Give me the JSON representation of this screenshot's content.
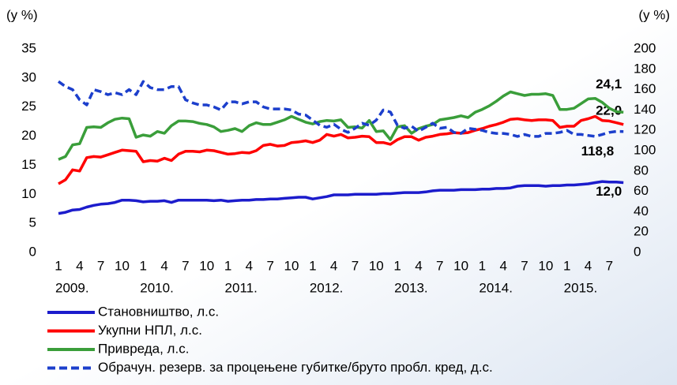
{
  "chart_data": {
    "type": "line",
    "y_label": "(у %)",
    "y2_label": "(у %)",
    "categories": [
      1,
      null,
      null,
      4,
      null,
      null,
      7,
      null,
      null,
      10,
      null,
      null,
      1,
      null,
      null,
      4,
      null,
      null,
      7,
      null,
      null,
      10,
      null,
      null,
      1,
      null,
      null,
      4,
      null,
      null,
      7,
      null,
      null,
      10,
      null,
      null,
      1,
      null,
      null,
      4,
      null,
      null,
      7,
      null,
      null,
      10,
      null,
      null,
      1,
      null,
      null,
      4,
      null,
      null,
      7,
      null,
      null,
      10,
      null,
      null,
      1,
      null,
      null,
      4,
      null,
      null,
      7,
      null,
      null,
      10,
      null,
      null,
      1,
      null,
      null,
      4,
      null,
      null,
      7,
      null,
      null
    ],
    "years": [
      "2009.",
      "2010.",
      "2011.",
      "2012.",
      "2013.",
      "2014.",
      "2015."
    ],
    "ylim": [
      0,
      35
    ],
    "yticks": [
      0,
      5,
      10,
      15,
      20,
      25,
      30,
      35
    ],
    "y2lim": [
      0,
      200
    ],
    "y2ticks": [
      0,
      20,
      40,
      60,
      80,
      100,
      120,
      140,
      160,
      180,
      200
    ],
    "series": [
      {
        "name": "Становништво, л.с.",
        "color": "#1c1ccc",
        "dashed": false,
        "values": [
          6.7,
          6.9,
          7.3,
          7.4,
          7.8,
          8.1,
          8.3,
          8.4,
          8.6,
          9.0,
          9.0,
          8.9,
          8.7,
          8.8,
          8.8,
          8.9,
          8.6,
          9.0,
          9.0,
          9.0,
          9.0,
          9.0,
          8.9,
          9.0,
          8.8,
          8.9,
          9.0,
          9.0,
          9.1,
          9.1,
          9.2,
          9.2,
          9.3,
          9.4,
          9.5,
          9.5,
          9.2,
          9.4,
          9.6,
          9.9,
          9.9,
          9.9,
          10.0,
          10.0,
          10.0,
          10.0,
          10.1,
          10.1,
          10.2,
          10.3,
          10.3,
          10.3,
          10.4,
          10.6,
          10.7,
          10.7,
          10.7,
          10.8,
          10.8,
          10.8,
          10.9,
          10.9,
          11.0,
          11.0,
          11.1,
          11.4,
          11.5,
          11.5,
          11.5,
          11.4,
          11.5,
          11.5,
          11.6,
          11.6,
          11.7,
          11.8,
          12.0,
          12.2,
          12.1,
          12.1,
          12.0
        ],
        "value_labels": [
          null,
          null,
          null,
          null,
          null,
          null,
          null,
          null,
          null,
          null,
          null,
          null,
          null,
          null,
          null,
          null,
          null,
          null,
          null,
          null,
          null,
          null,
          null,
          null,
          null,
          null,
          null,
          null,
          null,
          null,
          null,
          null,
          null,
          null,
          null,
          null,
          null,
          null,
          null,
          null,
          null,
          null,
          null,
          null,
          null,
          null,
          null,
          null,
          null,
          null,
          null,
          null,
          null,
          null,
          null,
          null,
          null,
          null,
          null,
          null,
          null,
          null,
          null,
          null,
          null,
          null,
          null,
          null,
          null,
          null,
          null,
          null,
          null,
          null,
          null,
          null,
          null,
          null,
          null,
          null,
          "12,0"
        ]
      },
      {
        "name": "Укупни НПЛ, л.с.",
        "color": "#ff0000",
        "dashed": false,
        "values": [
          11.8,
          12.5,
          14.2,
          14.0,
          16.3,
          16.5,
          16.4,
          16.8,
          17.2,
          17.6,
          17.5,
          17.4,
          15.6,
          15.8,
          15.7,
          16.2,
          15.8,
          16.9,
          17.4,
          17.4,
          17.3,
          17.6,
          17.5,
          17.2,
          16.9,
          17.0,
          17.2,
          17.1,
          17.5,
          18.4,
          18.6,
          18.3,
          18.4,
          18.9,
          19.0,
          19.2,
          18.9,
          19.3,
          20.3,
          20.0,
          20.3,
          19.7,
          19.8,
          20.0,
          19.9,
          18.9,
          18.9,
          18.6,
          19.4,
          19.9,
          19.9,
          19.3,
          19.8,
          20.0,
          20.3,
          20.4,
          20.6,
          20.5,
          20.6,
          21.0,
          21.3,
          21.7,
          22.0,
          22.4,
          22.9,
          23.0,
          22.8,
          22.7,
          22.8,
          22.8,
          22.7,
          21.5,
          21.7,
          21.7,
          22.7,
          23.0,
          23.4,
          22.7,
          22.6,
          22.3,
          22.0
        ],
        "value_labels": [
          null,
          null,
          null,
          null,
          null,
          null,
          null,
          null,
          null,
          null,
          null,
          null,
          null,
          null,
          null,
          null,
          null,
          null,
          null,
          null,
          null,
          null,
          null,
          null,
          null,
          null,
          null,
          null,
          null,
          null,
          null,
          null,
          null,
          null,
          null,
          null,
          null,
          null,
          null,
          null,
          null,
          null,
          null,
          null,
          null,
          null,
          null,
          null,
          null,
          null,
          null,
          null,
          null,
          null,
          null,
          null,
          null,
          null,
          null,
          null,
          null,
          null,
          null,
          null,
          null,
          null,
          null,
          null,
          null,
          null,
          null,
          null,
          null,
          null,
          null,
          null,
          null,
          null,
          null,
          null,
          "22,0"
        ]
      },
      {
        "name": "Привреда, л.с.",
        "color": "#3a9e3a",
        "dashed": false,
        "values": [
          16.0,
          16.5,
          18.5,
          18.7,
          21.5,
          21.6,
          21.5,
          22.3,
          22.9,
          23.1,
          23.0,
          19.8,
          20.2,
          20.0,
          20.8,
          20.5,
          21.8,
          22.6,
          22.6,
          22.5,
          22.2,
          22.0,
          21.6,
          20.8,
          21.0,
          21.3,
          20.8,
          21.8,
          22.3,
          22.0,
          22.0,
          22.4,
          22.8,
          23.4,
          22.9,
          22.4,
          22.1,
          22.5,
          22.7,
          22.6,
          22.8,
          21.5,
          21.6,
          21.4,
          22.7,
          20.8,
          20.9,
          19.4,
          21.6,
          21.8,
          20.5,
          21.3,
          21.7,
          22.0,
          22.8,
          23.0,
          23.2,
          23.5,
          23.2,
          24.1,
          24.6,
          25.2,
          26.0,
          26.9,
          27.6,
          27.3,
          27.0,
          27.2,
          27.2,
          27.3,
          27.0,
          24.6,
          24.6,
          24.8,
          25.6,
          26.4,
          26.5,
          25.8,
          24.8,
          24.2,
          24.1
        ],
        "value_labels": [
          null,
          null,
          null,
          null,
          null,
          null,
          null,
          null,
          null,
          null,
          null,
          null,
          null,
          null,
          null,
          null,
          null,
          null,
          null,
          null,
          null,
          null,
          null,
          null,
          null,
          null,
          null,
          null,
          null,
          null,
          null,
          null,
          null,
          null,
          null,
          null,
          null,
          null,
          null,
          null,
          null,
          null,
          null,
          null,
          null,
          null,
          null,
          null,
          null,
          null,
          null,
          null,
          null,
          null,
          null,
          null,
          null,
          null,
          null,
          null,
          null,
          null,
          null,
          null,
          null,
          null,
          null,
          null,
          null,
          null,
          null,
          null,
          null,
          null,
          null,
          null,
          null,
          null,
          null,
          null,
          "24,1"
        ]
      },
      {
        "name": "Обрачун. резерв. за процењене губитке/бруто пробл. кред, д.с.",
        "color": "#1c3fcc",
        "dashed": true,
        "axis": "y2",
        "values": [
          168,
          163,
          160,
          150,
          145,
          160,
          158,
          155,
          157,
          155,
          160,
          155,
          168,
          162,
          160,
          160,
          163,
          163,
          150,
          147,
          145,
          145,
          143,
          140,
          148,
          148,
          146,
          148,
          148,
          143,
          141,
          141,
          141,
          140,
          136,
          135,
          130,
          125,
          123,
          126,
          121,
          118,
          122,
          127,
          125,
          130,
          140,
          138,
          125,
          122,
          124,
          119,
          123,
          127,
          122,
          123,
          118,
          117,
          122,
          121,
          120,
          118,
          117,
          117,
          116,
          114,
          116,
          114,
          114,
          117,
          117,
          118,
          120,
          116,
          116,
          115,
          114,
          116,
          118,
          119,
          118.8
        ],
        "value_labels": [
          null,
          null,
          null,
          null,
          null,
          null,
          null,
          null,
          null,
          null,
          null,
          null,
          null,
          null,
          null,
          null,
          null,
          null,
          null,
          null,
          null,
          null,
          null,
          null,
          null,
          null,
          null,
          null,
          null,
          null,
          null,
          null,
          null,
          null,
          null,
          null,
          null,
          null,
          null,
          null,
          null,
          null,
          null,
          null,
          null,
          null,
          null,
          null,
          null,
          null,
          null,
          null,
          null,
          null,
          null,
          null,
          null,
          null,
          null,
          null,
          null,
          null,
          null,
          null,
          null,
          null,
          null,
          null,
          null,
          null,
          null,
          null,
          null,
          null,
          null,
          null,
          null,
          null,
          null,
          null,
          "118,8"
        ]
      }
    ]
  }
}
